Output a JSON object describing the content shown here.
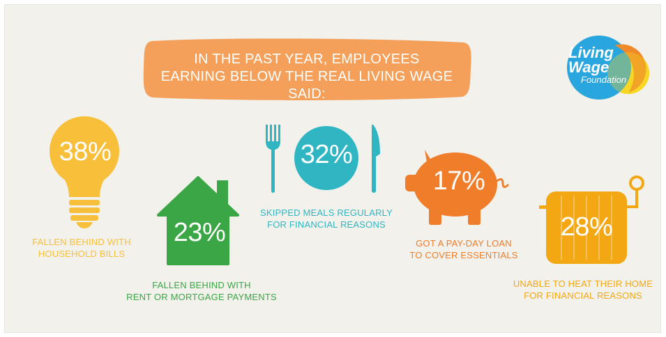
{
  "banner": {
    "line1": "IN THE PAST YEAR, EMPLOYEES",
    "line2": "EARNING BELOW THE REAL LIVING WAGE SAID:"
  },
  "logo": {
    "line1": "Living",
    "line2": "Wage",
    "line3": "Foundation"
  },
  "stats": [
    {
      "value": "38%",
      "icon": "lightbulb-icon",
      "caption_line1": "FALLEN BEHIND WITH",
      "caption_line2": "HOUSEHOLD BILLS",
      "color": "#f8bf3a"
    },
    {
      "value": "23%",
      "icon": "house-icon",
      "caption_line1": "FALLEN BEHIND WITH",
      "caption_line2": "RENT OR MORTGAGE PAYMENTS",
      "color": "#3ba645"
    },
    {
      "value": "32%",
      "icon": "plate-icon",
      "caption_line1": "SKIPPED MEALS REGULARLY",
      "caption_line2": "FOR FINANCIAL REASONS",
      "color": "#2fb6c2"
    },
    {
      "value": "17%",
      "icon": "piggy-bank-icon",
      "caption_line1": "GOT A PAY-DAY LOAN",
      "caption_line2": "TO COVER ESSENTIALS",
      "color": "#ef7d2a"
    },
    {
      "value": "28%",
      "icon": "radiator-icon",
      "caption_line1": "UNABLE TO HEAT THEIR HOME",
      "caption_line2": "FOR FINANCIAL REASONS",
      "color": "#f3a712"
    }
  ],
  "colors": {
    "banner": "#f4a05a",
    "background": "#f2f1ec",
    "logo_blue": "#2aa6de",
    "logo_yellow": "#f7d51d",
    "logo_orange": "#ef8a2b"
  }
}
